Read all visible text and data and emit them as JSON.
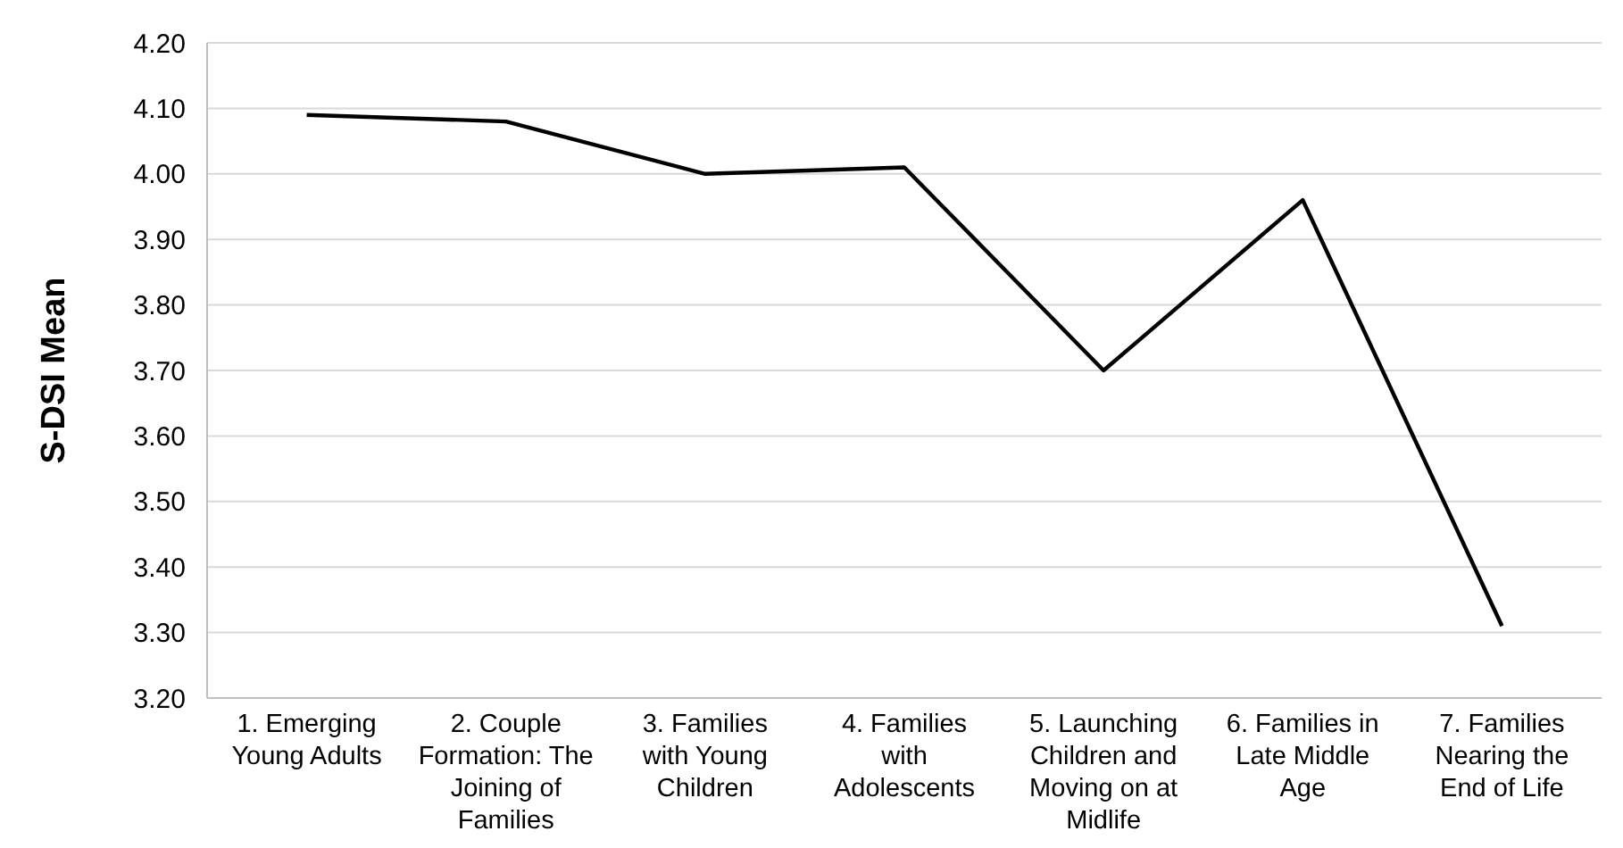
{
  "chart_data": {
    "type": "line",
    "ylabel": "S-DSI Mean",
    "categories": [
      "1. Emerging Young Adults",
      "2. Couple Formation: The Joining of Families",
      "3. Families with Young Children",
      "4. Families with Adolescents",
      "5. Launching Children and Moving on at Midlife",
      "6. Families in Late Middle Age",
      "7. Families Nearing the End of Life"
    ],
    "series": [
      {
        "color": "#000000",
        "values": [
          4.09,
          4.08,
          4.0,
          4.01,
          3.7,
          3.96,
          3.31
        ]
      }
    ],
    "ylim": [
      3.2,
      4.2
    ],
    "yticks": [
      {
        "value": 3.2,
        "label": "3.20"
      },
      {
        "value": 3.3,
        "label": "3.30"
      },
      {
        "value": 3.4,
        "label": "3.40"
      },
      {
        "value": 3.5,
        "label": "3.50"
      },
      {
        "value": 3.6,
        "label": "3.60"
      },
      {
        "value": 3.7,
        "label": "3.70"
      },
      {
        "value": 3.8,
        "label": "3.80"
      },
      {
        "value": 3.9,
        "label": "3.90"
      },
      {
        "value": 4.0,
        "label": "4.00"
      },
      {
        "value": 4.1,
        "label": "4.10"
      },
      {
        "value": 4.2,
        "label": "4.20"
      }
    ],
    "grid": "y",
    "marker": "none",
    "line_style": "solid"
  }
}
